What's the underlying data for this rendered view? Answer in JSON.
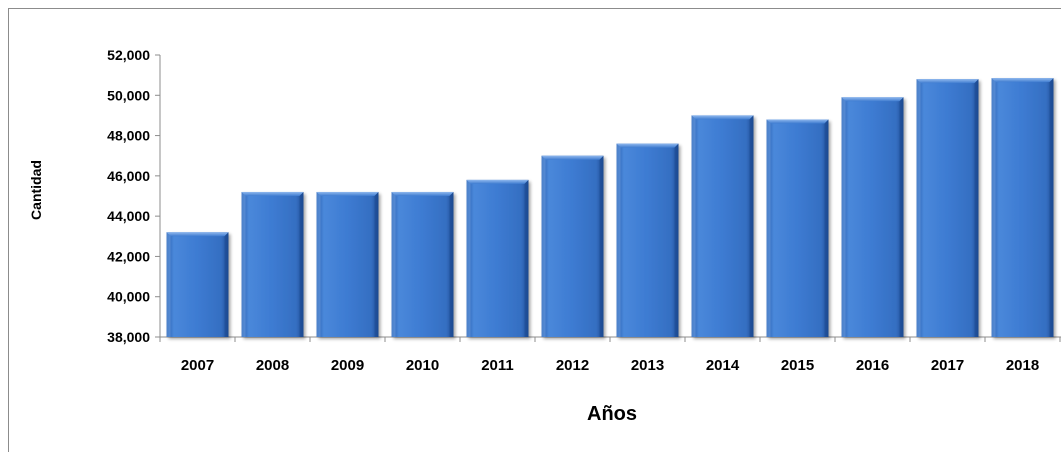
{
  "chart_data": {
    "type": "bar",
    "title": "",
    "xlabel": "Años",
    "ylabel": "Cantidad",
    "categories": [
      "2007",
      "2008",
      "2009",
      "2010",
      "2011",
      "2012",
      "2013",
      "2014",
      "2015",
      "2016",
      "2017",
      "2018"
    ],
    "values": [
      43200,
      45200,
      45200,
      45200,
      45800,
      47000,
      47600,
      49000,
      48800,
      49900,
      50800,
      50850
    ],
    "ylim": [
      38000,
      52000
    ],
    "yticks": [
      "38,000",
      "40,000",
      "42,000",
      "44,000",
      "46,000",
      "48,000",
      "50,000",
      "52,000"
    ],
    "ytick_values": [
      38000,
      40000,
      42000,
      44000,
      46000,
      48000,
      50000,
      52000
    ],
    "bar_color": "#3f7cd0",
    "grid": false,
    "legend": "none"
  }
}
